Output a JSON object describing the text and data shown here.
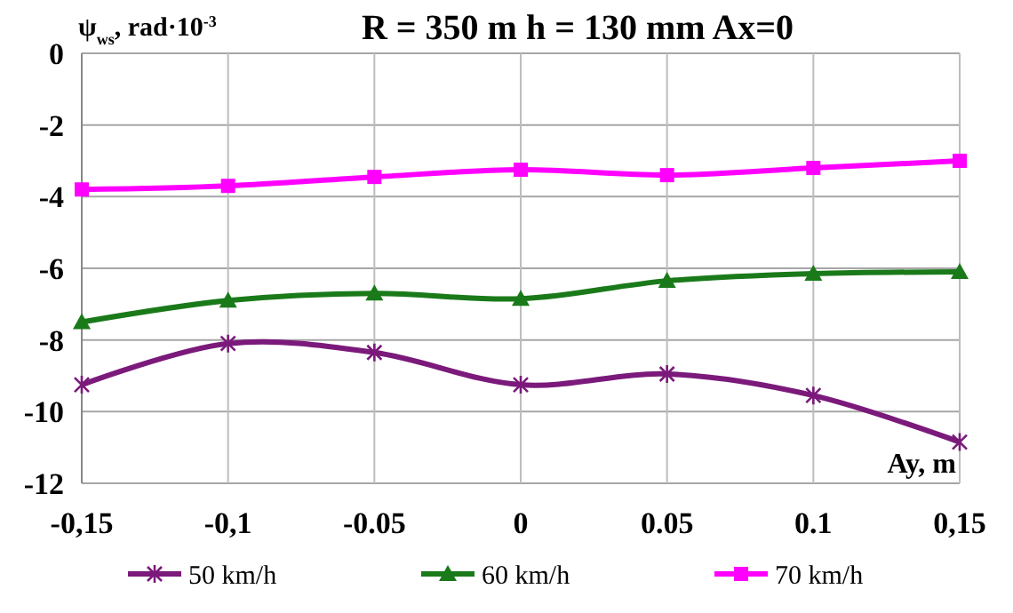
{
  "chart_data": {
    "type": "line",
    "title": "R = 350 m  h = 130 mm  Ax=0",
    "xlabel": "Ay, m",
    "ylabel": "ψ$_{ws}$, rad·10$^{-3}$",
    "x": [
      -0.15,
      -0.1,
      -0.05,
      0,
      0.05,
      0.1,
      0.15
    ],
    "series": [
      {
        "name": "50 km/h",
        "color": "#7b1a7b",
        "marker": "cross",
        "values": [
          -9.25,
          -8.1,
          -8.35,
          -9.25,
          -8.95,
          -9.55,
          -10.85
        ]
      },
      {
        "name": "60 km/h",
        "color": "#1a7a1a",
        "marker": "triangle",
        "values": [
          -7.5,
          -6.9,
          -6.7,
          -6.85,
          -6.35,
          -6.15,
          -6.1
        ]
      },
      {
        "name": "70 km/h",
        "color": "#ff00ff",
        "marker": "square",
        "values": [
          -3.8,
          -3.7,
          -3.45,
          -3.25,
          -3.4,
          -3.2,
          -3.0
        ]
      }
    ],
    "xlim": [
      -0.15,
      0.15
    ],
    "xticks": [
      {
        "value": -0.15,
        "label": "-0,15"
      },
      {
        "value": -0.1,
        "label": "-0,1"
      },
      {
        "value": -0.05,
        "label": "-0.05"
      },
      0,
      0.05,
      0.1,
      {
        "value": 0.15,
        "label": "0,15"
      }
    ],
    "ylim": [
      -12,
      0
    ],
    "yticks": [
      -12,
      -10,
      -8,
      -6,
      -4,
      -2,
      0
    ],
    "grid": true,
    "legend": "bottom"
  }
}
